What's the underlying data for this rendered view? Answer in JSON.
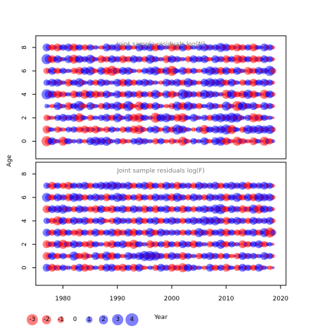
{
  "chart_data": {
    "type": "scatter",
    "variant": "bubble-residuals",
    "xlabel": "Year",
    "ylabel": "Age",
    "xlim": [
      1975,
      2021
    ],
    "x_ticks": [
      1980,
      1990,
      2000,
      2010,
      2020
    ],
    "ylim": [
      -1.5,
      9.0
    ],
    "y_ticks": [
      0,
      2,
      4,
      6,
      8
    ],
    "colors": {
      "positive": "#0000ff",
      "negative": "#ff0000",
      "alpha": 0.5
    },
    "years": {
      "start": 1977,
      "end": 2018
    },
    "ages": [
      0,
      1,
      2,
      3,
      4,
      5,
      6,
      7,
      8
    ],
    "panels": [
      {
        "name": "N",
        "title": "Joint sample residuals log(N)",
        "points_per_cell": 3,
        "residuals": [
          [
            -2.5,
            1.5,
            0.5,
            -2,
            1,
            0.5,
            0.8,
            -0.5,
            1.5,
            2,
            1.5,
            2,
            0.5,
            1,
            -1,
            -0.5,
            1,
            1.5,
            1,
            0.5,
            -1,
            1,
            -0.5,
            -1,
            -0.5,
            -2,
            -0.5,
            1,
            0.5,
            1.5,
            -0.5,
            1.5,
            2,
            -1.5,
            -0.5,
            -2,
            -1,
            -0.5,
            -1.5,
            0.5,
            -2,
            -1
          ],
          [
            -1.5,
            0.5,
            -1,
            -0.5,
            0.8,
            1,
            -1,
            -1.5,
            -1,
            -1.5,
            -0.5,
            -1,
            1,
            0.5,
            -1,
            1,
            -1.5,
            -2,
            -0.5,
            1,
            1.5,
            -0.5,
            1.5,
            -1,
            2.5,
            1.5,
            0.5,
            -0.5,
            1,
            -2,
            1,
            1.5,
            1.5,
            2.5,
            -2,
            0.5,
            -1,
            2,
            1.5,
            2,
            1.5,
            2
          ],
          [
            -1,
            -0.5,
            1,
            1.5,
            1,
            1.5,
            -2,
            0.5,
            -1,
            0.5,
            1,
            1.5,
            -1,
            2,
            0.5,
            1.5,
            -1.5,
            -2,
            1,
            0.5,
            -2.5,
            1.5,
            2,
            1,
            -1.5,
            -2,
            0.5,
            1.5,
            0.5,
            1,
            -1,
            1.5,
            2,
            1.5,
            2.5,
            2,
            0.5,
            1,
            -2,
            -1.5,
            1,
            0.5
          ],
          [
            0.5,
            -0.5,
            1.5,
            0.5,
            -1.5,
            1,
            2.5,
            -0.5,
            1.5,
            0.5,
            -1,
            1.5,
            1,
            2,
            -1,
            2.5,
            -0.5,
            -2,
            1.5,
            -1,
            1.5,
            0.5,
            -0.5,
            -1,
            2,
            -1.5,
            2,
            1,
            -1,
            0.5,
            1.5,
            1,
            -0.5,
            2,
            0.5,
            -2.5,
            2,
            1,
            1.5,
            -0.5,
            1.5,
            1
          ],
          [
            2.5,
            1.5,
            -1.5,
            -1,
            0.5,
            -1.5,
            1,
            -2,
            1.5,
            -1.5,
            -1,
            1.5,
            0.5,
            1.5,
            -1,
            1.5,
            1,
            -1.5,
            1,
            -1,
            2,
            -0.5,
            1.5,
            -1.5,
            -0.5,
            2.5,
            1.5,
            1,
            -1,
            2,
            1.5,
            1,
            0.5,
            -2,
            2,
            -1,
            -1.5,
            2,
            -1.5,
            0.5,
            -2,
            1.5
          ],
          [
            1,
            1.5,
            1.5,
            0.5,
            -1.5,
            1,
            2,
            0.5,
            1,
            -1,
            1.5,
            1,
            0.5,
            1.5,
            -1.5,
            1.5,
            -1,
            1,
            1.5,
            1,
            0.5,
            -0.5,
            1.5,
            1,
            1.5,
            -1,
            2,
            1,
            -0.5,
            1.5,
            2,
            1.5,
            2,
            -1,
            1.5,
            0.5,
            -1,
            1,
            -1.5,
            1,
            1.5,
            1
          ],
          [
            -1,
            1.5,
            -1,
            1,
            0.5,
            -1,
            -1.5,
            1.5,
            2,
            -0.5,
            1.5,
            -1.5,
            -2.5,
            -1,
            1.5,
            1.5,
            0.5,
            -0.5,
            1,
            1.5,
            2,
            -1,
            1.5,
            -2.5,
            0.5,
            1.5,
            -1,
            1,
            -0.5,
            1,
            2,
            1.5,
            -1.5,
            1.5,
            -1,
            1.5,
            0.5,
            -1.5,
            -1,
            1.5,
            1,
            2.5
          ],
          [
            2.5,
            -1.5,
            1.5,
            0.5,
            1.5,
            -2,
            1.5,
            1,
            2,
            0.5,
            -1.5,
            -1,
            1.5,
            1,
            -1.5,
            -1,
            1.5,
            1,
            -1,
            2,
            1,
            0.5,
            -1.5,
            1.5,
            1,
            0.5,
            -1,
            1.5,
            1,
            1.5,
            -0.5,
            1.5,
            1,
            -1.5,
            1,
            -2,
            -1.5,
            1,
            -1.5,
            -1,
            1.5,
            1
          ],
          [
            1.5,
            -1,
            -1.5,
            1,
            1.5,
            -1.5,
            1,
            -1,
            1,
            0.5,
            -0.5,
            1.5,
            1,
            1.5,
            -1,
            1,
            -0.5,
            1.5,
            1,
            1.5,
            -1.5,
            1,
            0.5,
            -1.5,
            -1,
            1.5,
            -1,
            0.5,
            1,
            1.5,
            1,
            1,
            2,
            1.5,
            -1,
            -1.5,
            -1,
            1,
            -1.5,
            0.5,
            1.5,
            1
          ]
        ]
      },
      {
        "name": "F",
        "title": "Joint sample residuals log(F)",
        "points_per_cell": 3,
        "residuals": [
          [
            1.5,
            -1.5,
            -1,
            1,
            0.5,
            -1,
            1.5,
            -1.5,
            -1,
            0.5,
            -1,
            1.5,
            1.5,
            -1,
            -1.5,
            1,
            -1.5,
            1.5,
            -0.5,
            0.5,
            -1,
            1.5,
            1,
            -1.5,
            -1,
            -2,
            1.5,
            1,
            0.5,
            -0.5,
            1.5,
            -1,
            1,
            -1.5,
            0.5,
            -1,
            1.5,
            1,
            -1,
            1.5,
            0.5,
            -0.5
          ],
          [
            -1.5,
            1.5,
            -1,
            1,
            -0.5,
            2,
            -1,
            -1.5,
            -0.5,
            1.5,
            -1,
            2,
            -1.5,
            1,
            -0.5,
            1.5,
            1,
            1.5,
            2.5,
            2.5,
            2,
            1,
            -1,
            1.5,
            1,
            -1.5,
            1,
            0.5,
            -1,
            1,
            1.5,
            1,
            -1,
            1,
            -0.5,
            -1,
            1.5,
            1,
            1,
            0.5,
            1.5,
            1
          ],
          [
            -1.5,
            -1,
            1.5,
            -2,
            -1,
            1.5,
            1,
            -1,
            -1.5,
            1,
            0.5,
            -1,
            -1.5,
            1,
            1.5,
            -1,
            -2,
            1,
            0.5,
            -1.5,
            -1,
            1,
            -1.5,
            1,
            -1,
            1.5,
            1,
            -1.5,
            1,
            0.5,
            -1,
            1,
            2,
            -1,
            1,
            0.5,
            -1.5,
            -1,
            1,
            1.5,
            -1,
            0.5
          ],
          [
            1.5,
            -1,
            1.5,
            -1.5,
            1,
            -1,
            -1.5,
            1,
            -1,
            1.5,
            -1,
            1,
            1.5,
            -1.5,
            -1,
            1.5,
            -1.5,
            1,
            -1,
            2,
            -1,
            1.5,
            1,
            1,
            1,
            -1,
            1,
            -1,
            2,
            1,
            -1.5,
            1,
            1.5,
            -1.5,
            1,
            -1,
            -1.5,
            1,
            1.5,
            -1,
            2,
            -2.5
          ],
          [
            1,
            -1,
            -2,
            1.5,
            -1,
            1.5,
            1,
            1.5,
            -1,
            1,
            1.5,
            -0.5,
            -1,
            1.5,
            1,
            1,
            -1,
            1.5,
            -1,
            1,
            1.5,
            -1,
            1,
            1.5,
            1,
            -1,
            1,
            1.5,
            1,
            2,
            1.5,
            2,
            1,
            -1.5,
            1,
            1.5,
            1,
            -1,
            1.5,
            1,
            1,
            1.5
          ],
          [
            -1.5,
            1.5,
            1.5,
            2,
            1,
            -1,
            1.5,
            1,
            -1,
            -1.5,
            1.5,
            -1,
            -1.5,
            1,
            1.5,
            -1,
            1.5,
            1,
            -1.5,
            1,
            -1.5,
            1,
            1.5,
            -1,
            1,
            -1.5,
            1,
            -1,
            1,
            1.5,
            1,
            2,
            2.5,
            -1,
            1.5,
            1,
            -1.5,
            -1,
            2,
            -2,
            1.5,
            1
          ],
          [
            2,
            -1,
            1.5,
            1,
            -1.5,
            2,
            1.5,
            -1,
            1,
            1.5,
            1,
            -1.5,
            1,
            2,
            1.5,
            -1,
            1,
            -1.5,
            1,
            -1,
            1.5,
            1,
            1.5,
            -1.5,
            2,
            1,
            -1,
            1.5,
            1,
            -1,
            1.5,
            1,
            1.5,
            -1.5,
            1,
            2,
            -1,
            1.5,
            -1.5,
            2,
            1.5,
            1.5
          ],
          [
            1,
            -1.5,
            1,
            -1,
            -1.5,
            1,
            1,
            1.5,
            -1,
            1,
            1.5,
            1.5,
            2,
            1.5,
            1,
            1.5,
            -1,
            1,
            1.5,
            -1.5,
            1,
            -1,
            1.5,
            1,
            -1.5,
            1,
            1,
            -1,
            1.5,
            1,
            1,
            1.5,
            -1,
            1,
            1.5,
            1,
            1.5,
            -1.5,
            1,
            1,
            1.5,
            1
          ],
          []
        ]
      }
    ],
    "legend": {
      "placement": "bottom-left",
      "values": [
        -3,
        -2,
        -1,
        0,
        1,
        2,
        3,
        4
      ],
      "labels": [
        "-3",
        "-2",
        "-1",
        "0",
        "1",
        "2",
        "3",
        "4"
      ]
    }
  }
}
